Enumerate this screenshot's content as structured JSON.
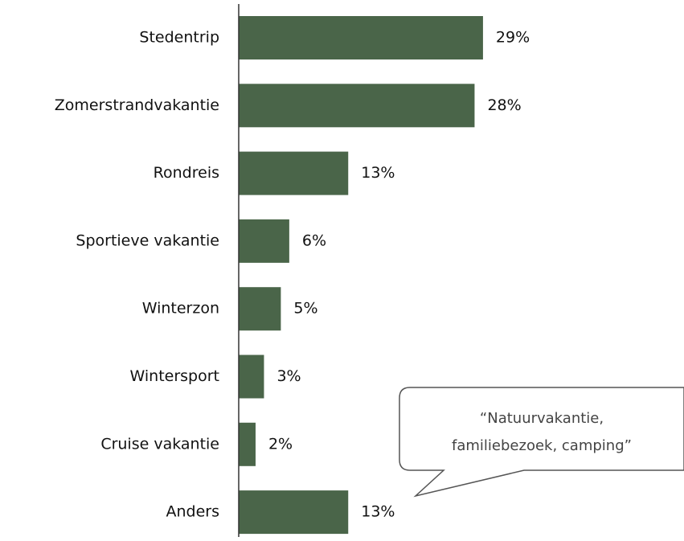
{
  "chart_data": {
    "type": "barh",
    "categories": [
      "Stedentrip",
      "Zomerstrandvakantie",
      "Rondreis",
      "Sportieve vakantie",
      "Winterzon",
      "Wintersport",
      "Cruise vakantie",
      "Anders"
    ],
    "values": [
      29,
      28,
      13,
      6,
      5,
      3,
      2,
      13
    ],
    "value_labels": [
      "29%",
      "28%",
      "13%",
      "6%",
      "5%",
      "3%",
      "2%",
      "13%"
    ],
    "color": "#4a6549",
    "xlim": [
      0,
      50
    ],
    "annotation": [
      "“Natuurvakantie,",
      "familiebezoek, camping”"
    ]
  }
}
